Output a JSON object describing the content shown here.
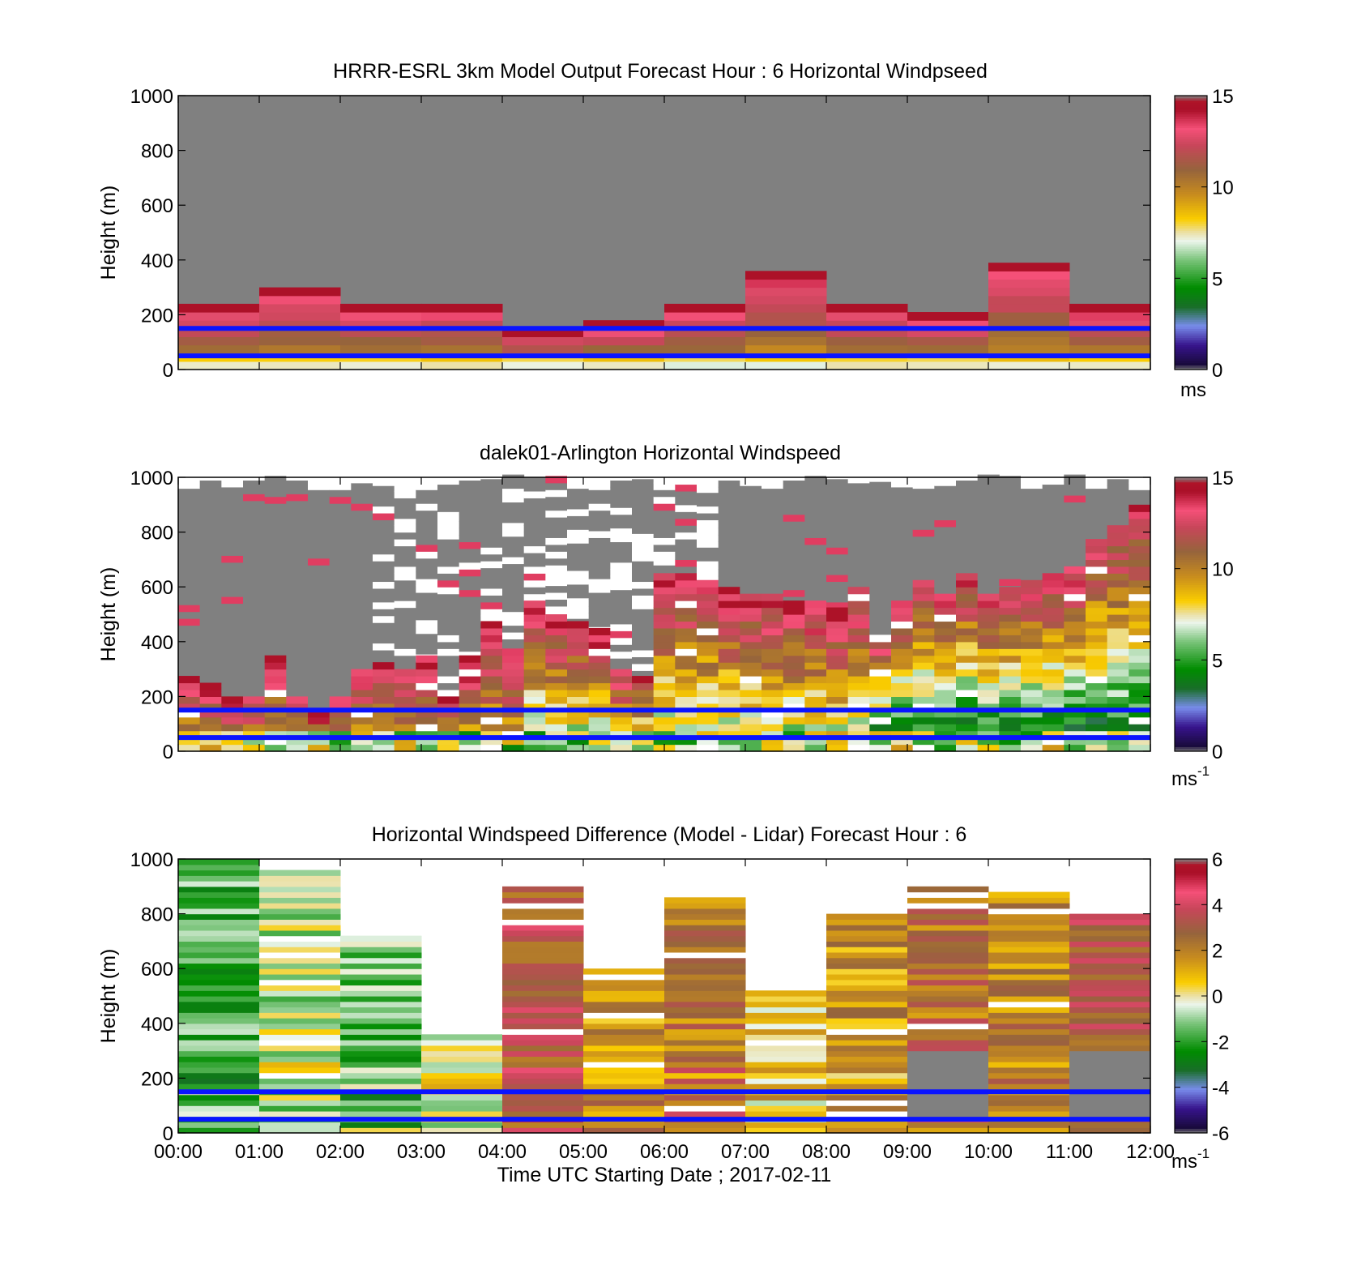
{
  "chart_data": [
    {
      "type": "heatmap",
      "title": "HRRR-ESRL 3km Model Output   Forecast Hour : 6 Horizontal Windpseed",
      "ylabel": "Height (m)",
      "ylim": [
        0,
        1000
      ],
      "yticks": [
        "0",
        "200",
        "400",
        "600",
        "800",
        "1000"
      ],
      "xlim": [
        "00:00",
        "12:00"
      ],
      "colorbar": {
        "range": [
          0,
          15
        ],
        "ticks": [
          "0",
          "5",
          "10",
          "15"
        ],
        "unit": "ms"
      },
      "reference_lines_m": [
        50,
        150
      ],
      "missing_above_m": [
        250,
        300,
        250,
        250,
        150,
        180,
        250,
        350,
        250,
        200,
        400,
        250
      ],
      "profile_samples_ms": [
        10.5,
        12,
        12.5,
        13,
        13.5,
        14
      ]
    },
    {
      "type": "heatmap",
      "title": "dalek01-Arlington  Horizontal Windspeed",
      "ylabel": "Height (m)",
      "ylim": [
        0,
        1000
      ],
      "yticks": [
        "0",
        "200",
        "400",
        "600",
        "800",
        "1000"
      ],
      "xlim": [
        "00:00",
        "12:00"
      ],
      "colorbar": {
        "range": [
          0,
          15
        ],
        "ticks": [
          "0",
          "5",
          "10",
          "15"
        ],
        "unit": "ms",
        "unit_exp": "-1"
      },
      "reference_lines_m": [
        50,
        150
      ],
      "valid_top_m": [
        260,
        240,
        190,
        190,
        330,
        190,
        130,
        180,
        280,
        320,
        300,
        330,
        200,
        340,
        470,
        360,
        550,
        480,
        460,
        430,
        290,
        270,
        630,
        650,
        620,
        590,
        570,
        560,
        540,
        530,
        520,
        580,
        410,
        540,
        610,
        570,
        640,
        560,
        580,
        610,
        650,
        660,
        760,
        820,
        880
      ]
    },
    {
      "type": "heatmap",
      "title": "Horizontal Windspeed Difference (Model - Lidar) Forecast Hour : 6",
      "xlabel": "Time UTC  Starting Date ; 2017-02-11",
      "ylabel": "Height (m)",
      "ylim": [
        0,
        1000
      ],
      "yticks": [
        "0",
        "200",
        "400",
        "600",
        "800",
        "1000"
      ],
      "xticks": [
        "00:00",
        "01:00",
        "02:00",
        "03:00",
        "04:00",
        "05:00",
        "06:00",
        "07:00",
        "08:00",
        "09:00",
        "10:00",
        "11:00",
        "12:00"
      ],
      "colorbar": {
        "range": [
          -6,
          6
        ],
        "ticks": [
          "-6",
          "-4",
          "-2",
          "0",
          "2",
          "4",
          "6"
        ],
        "unit": "ms",
        "unit_exp": "-1"
      },
      "reference_lines_m": [
        50,
        150
      ],
      "hourly_difference_ms": [
        -1.6,
        -0.6,
        -1.3,
        -0.4,
        3.2,
        1.4,
        2.3,
        0.7,
        1.6,
        2.5,
        2.0,
        3.0
      ],
      "valid_top_m": [
        990,
        960,
        720,
        360,
        890,
        600,
        860,
        510,
        790,
        900,
        870,
        800
      ]
    }
  ]
}
